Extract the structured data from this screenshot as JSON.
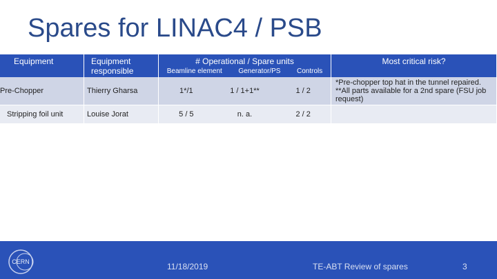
{
  "title": "Spares for LINAC4 / PSB",
  "table": {
    "headers": {
      "equipment": "Equipment",
      "responsible": "Equipment responsible",
      "units": "# Operational / Spare units",
      "units_sub": [
        "Beamline element",
        "Generator/PS",
        "Controls"
      ],
      "risk": "Most critical risk?"
    },
    "rows": [
      {
        "equipment": "Pre-Chopper",
        "responsible": "Thierry Gharsa",
        "beamline": "1*/1",
        "generator": "1 / 1+1**",
        "controls": "1 / 2",
        "risk": [
          "*Pre-chopper top hat in the tunnel repaired.",
          "**All parts available for a 2nd spare (FSU job request)"
        ]
      },
      {
        "equipment": "Stripping foil unit",
        "responsible": "Louise Jorat",
        "beamline": "5 / 5",
        "generator": "n. a.",
        "controls": "2 / 2",
        "risk": []
      }
    ]
  },
  "footer": {
    "date": "11/18/2019",
    "center": "TE-ABT Review of spares",
    "page": "3",
    "logo_text": "CERN"
  }
}
